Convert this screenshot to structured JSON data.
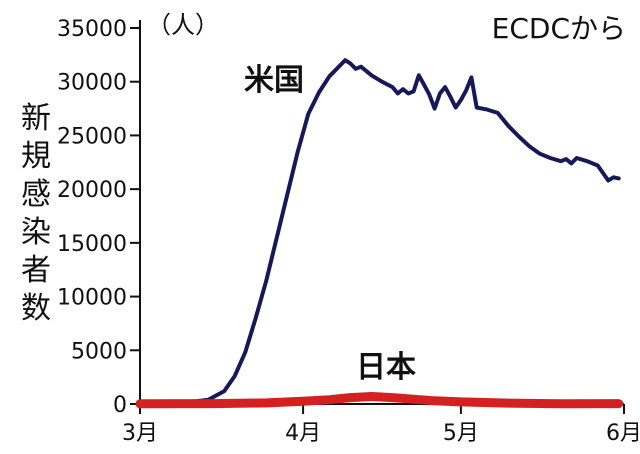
{
  "chart_data": {
    "type": "line",
    "ylabel": "新規感染者数",
    "unit_label": "（人）",
    "source": "ECDCから",
    "ylim": [
      0,
      35000
    ],
    "yticks": [
      "35000",
      "30000",
      "25000",
      "20000",
      "15000",
      "10000",
      "5000",
      "0"
    ],
    "xticks": [
      "3月",
      "4月",
      "5月",
      "6月"
    ],
    "xtick_dates": [
      "2020-03-01",
      "2020-04-01",
      "2020-05-01",
      "2020-06-01"
    ],
    "grid": false,
    "series": [
      {
        "name": "米国",
        "color": "#16185a",
        "points": [
          [
            "2020-03-01",
            0
          ],
          [
            "2020-03-05",
            50
          ],
          [
            "2020-03-10",
            150
          ],
          [
            "2020-03-14",
            400
          ],
          [
            "2020-03-17",
            1200
          ],
          [
            "2020-03-19",
            2600
          ],
          [
            "2020-03-21",
            4800
          ],
          [
            "2020-03-23",
            8000
          ],
          [
            "2020-03-25",
            11500
          ],
          [
            "2020-03-27",
            15500
          ],
          [
            "2020-03-29",
            19500
          ],
          [
            "2020-03-31",
            23500
          ],
          [
            "2020-04-02",
            27000
          ],
          [
            "2020-04-04",
            29000
          ],
          [
            "2020-04-06",
            30500
          ],
          [
            "2020-04-08",
            31500
          ],
          [
            "2020-04-09",
            32000
          ],
          [
            "2020-04-10",
            31700
          ],
          [
            "2020-04-11",
            31200
          ],
          [
            "2020-04-12",
            31400
          ],
          [
            "2020-04-14",
            30600
          ],
          [
            "2020-04-16",
            30000
          ],
          [
            "2020-04-18",
            29500
          ],
          [
            "2020-04-19",
            28900
          ],
          [
            "2020-04-20",
            29300
          ],
          [
            "2020-04-21",
            28900
          ],
          [
            "2020-04-22",
            29100
          ],
          [
            "2020-04-23",
            30600
          ],
          [
            "2020-04-24",
            29700
          ],
          [
            "2020-04-25",
            28800
          ],
          [
            "2020-04-26",
            27500
          ],
          [
            "2020-04-27",
            28900
          ],
          [
            "2020-04-28",
            29500
          ],
          [
            "2020-04-29",
            28600
          ],
          [
            "2020-04-30",
            27600
          ],
          [
            "2020-05-01",
            28300
          ],
          [
            "2020-05-02",
            29200
          ],
          [
            "2020-05-03",
            30400
          ],
          [
            "2020-05-04",
            27600
          ],
          [
            "2020-05-06",
            27400
          ],
          [
            "2020-05-08",
            27100
          ],
          [
            "2020-05-10",
            25900
          ],
          [
            "2020-05-12",
            24900
          ],
          [
            "2020-05-14",
            24000
          ],
          [
            "2020-05-16",
            23300
          ],
          [
            "2020-05-18",
            22900
          ],
          [
            "2020-05-20",
            22600
          ],
          [
            "2020-05-21",
            22800
          ],
          [
            "2020-05-22",
            22400
          ],
          [
            "2020-05-23",
            22900
          ],
          [
            "2020-05-25",
            22600
          ],
          [
            "2020-05-27",
            22200
          ],
          [
            "2020-05-28",
            21500
          ],
          [
            "2020-05-29",
            20800
          ],
          [
            "2020-05-30",
            21100
          ],
          [
            "2020-05-31",
            21000
          ]
        ]
      },
      {
        "name": "日本",
        "color": "#d42020",
        "points": [
          [
            "2020-03-01",
            20
          ],
          [
            "2020-03-15",
            40
          ],
          [
            "2020-03-25",
            100
          ],
          [
            "2020-04-01",
            250
          ],
          [
            "2020-04-06",
            400
          ],
          [
            "2020-04-10",
            600
          ],
          [
            "2020-04-14",
            700
          ],
          [
            "2020-04-18",
            600
          ],
          [
            "2020-04-22",
            450
          ],
          [
            "2020-04-26",
            300
          ],
          [
            "2020-05-01",
            200
          ],
          [
            "2020-05-10",
            80
          ],
          [
            "2020-05-20",
            30
          ],
          [
            "2020-05-31",
            40
          ]
        ]
      }
    ]
  }
}
